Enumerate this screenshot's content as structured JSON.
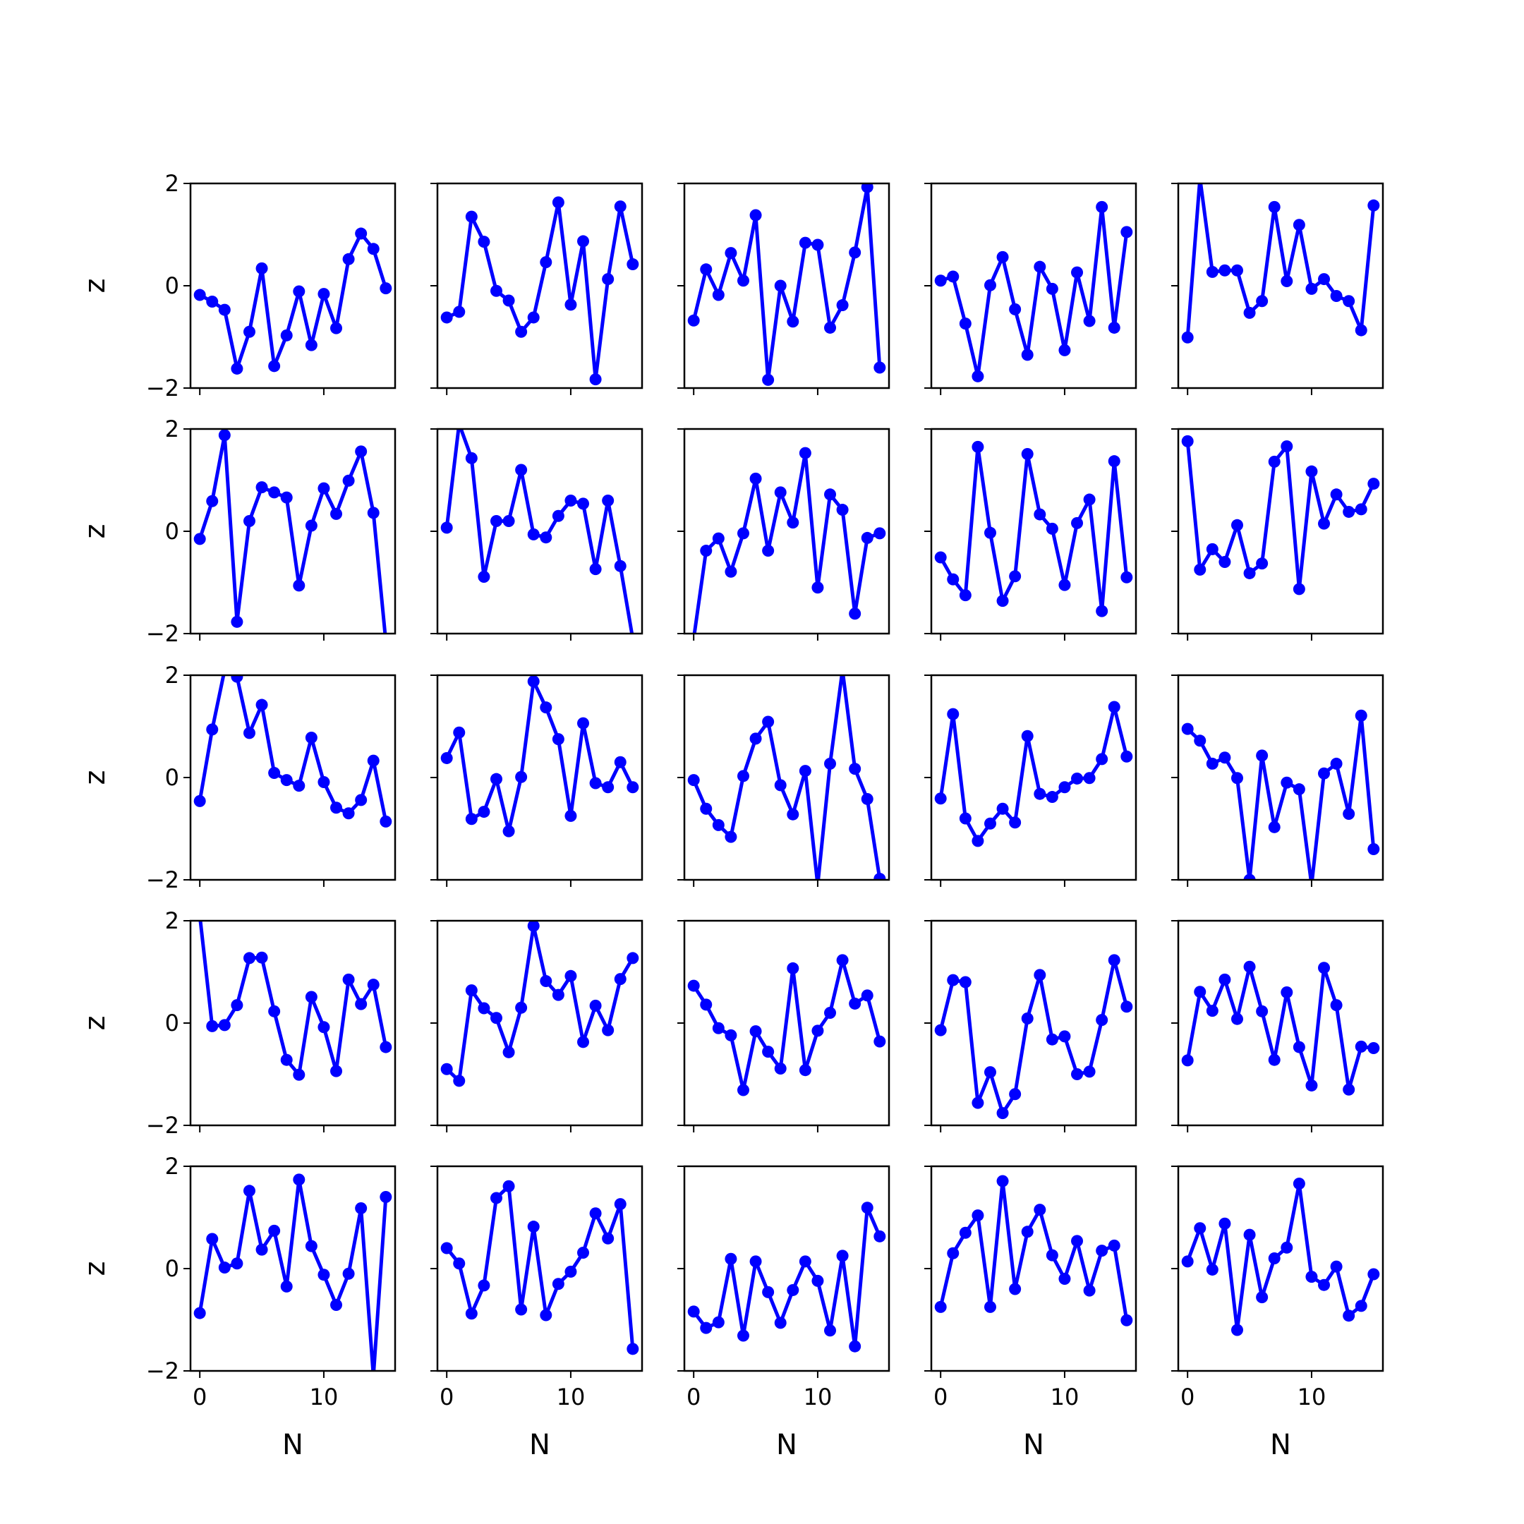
{
  "chart_data": {
    "type": "line",
    "layout": {
      "rows": 5,
      "cols": 5,
      "sharex": true,
      "sharey": true
    },
    "xlabel": "N",
    "ylabel": "z",
    "xlim": [
      -0.75,
      15.75
    ],
    "ylim": [
      -2,
      2
    ],
    "xticks": [
      0,
      10
    ],
    "yticks": [
      -2,
      0,
      2
    ],
    "xtick_labels": [
      "0",
      "10"
    ],
    "ytick_labels": [
      "−2",
      "0",
      "2"
    ],
    "x": [
      0,
      1,
      2,
      3,
      4,
      5,
      6,
      7,
      8,
      9,
      10,
      11,
      12,
      13,
      14,
      15
    ],
    "color": "#0000ff",
    "marker": "circle",
    "panels": [
      {
        "values": [
          -0.18,
          -0.31,
          -0.47,
          -1.62,
          -0.9,
          0.34,
          -1.57,
          -0.97,
          -0.11,
          -1.16,
          -0.16,
          -0.83,
          0.52,
          1.02,
          0.72,
          -0.05
        ]
      },
      {
        "values": [
          -0.62,
          -0.51,
          1.35,
          0.86,
          -0.1,
          -0.29,
          -0.9,
          -0.62,
          0.46,
          1.63,
          -0.37,
          0.87,
          -1.83,
          0.13,
          1.55,
          0.42
        ]
      },
      {
        "values": [
          -0.68,
          0.32,
          -0.18,
          0.64,
          0.1,
          1.38,
          -1.84,
          0.0,
          -0.7,
          0.84,
          0.8,
          -0.82,
          -0.38,
          0.65,
          1.93,
          -1.6
        ]
      },
      {
        "values": [
          0.1,
          0.18,
          -0.74,
          -1.77,
          0.01,
          0.56,
          -0.46,
          -1.35,
          0.37,
          -0.06,
          -1.26,
          0.26,
          -0.69,
          1.54,
          -0.82,
          1.05
        ]
      },
      {
        "values": [
          -1.01,
          2.1,
          0.27,
          0.3,
          0.3,
          -0.53,
          -0.3,
          1.54,
          0.09,
          1.19,
          -0.06,
          0.13,
          -0.2,
          -0.3,
          -0.87,
          1.57
        ]
      },
      {
        "values": [
          -0.15,
          0.59,
          1.88,
          -1.77,
          0.2,
          0.86,
          0.76,
          0.66,
          -1.06,
          0.11,
          0.84,
          0.34,
          0.99,
          1.56,
          0.36,
          -2.15
        ]
      },
      {
        "values": [
          0.07,
          2.1,
          1.43,
          -0.89,
          0.2,
          0.2,
          1.2,
          -0.06,
          -0.12,
          0.3,
          0.6,
          0.54,
          -0.74,
          0.6,
          -0.68,
          -2.1
        ]
      },
      {
        "values": [
          -2.1,
          -0.38,
          -0.14,
          -0.79,
          -0.04,
          1.03,
          -0.38,
          0.76,
          0.17,
          1.53,
          -1.1,
          0.72,
          0.42,
          -1.61,
          -0.13,
          -0.04
        ]
      },
      {
        "values": [
          -0.51,
          -0.94,
          -1.25,
          1.65,
          -0.03,
          -1.36,
          -0.88,
          1.51,
          0.33,
          0.05,
          -1.05,
          0.16,
          0.62,
          -1.56,
          1.37,
          -0.9
        ]
      },
      {
        "values": [
          1.76,
          -0.75,
          -0.35,
          -0.6,
          0.12,
          -0.82,
          -0.63,
          1.36,
          1.66,
          -1.13,
          1.17,
          0.15,
          0.72,
          0.38,
          0.43,
          0.93
        ]
      },
      {
        "values": [
          -0.46,
          0.94,
          2.1,
          1.97,
          0.87,
          1.42,
          0.09,
          -0.05,
          -0.16,
          0.78,
          -0.09,
          -0.59,
          -0.7,
          -0.44,
          0.33,
          -0.86
        ]
      },
      {
        "values": [
          0.38,
          0.88,
          -0.81,
          -0.67,
          -0.03,
          -1.05,
          0.01,
          1.88,
          1.37,
          0.75,
          -0.75,
          1.06,
          -0.11,
          -0.19,
          0.3,
          -0.19
        ]
      },
      {
        "values": [
          -0.05,
          -0.61,
          -0.93,
          -1.16,
          0.03,
          0.76,
          1.09,
          -0.15,
          -0.72,
          0.13,
          -2.1,
          0.27,
          2.1,
          0.17,
          -0.42,
          -1.98
        ]
      },
      {
        "values": [
          -0.41,
          1.24,
          -0.8,
          -1.24,
          -0.9,
          -0.61,
          -0.88,
          0.81,
          -0.32,
          -0.38,
          -0.19,
          -0.02,
          -0.01,
          0.36,
          1.38,
          0.41
        ]
      },
      {
        "values": [
          0.95,
          0.72,
          0.27,
          0.39,
          -0.01,
          -2.0,
          0.43,
          -0.97,
          -0.1,
          -0.23,
          -2.1,
          0.08,
          0.27,
          -0.71,
          1.21,
          -1.4
        ]
      },
      {
        "values": [
          2.1,
          -0.06,
          -0.04,
          0.35,
          1.27,
          1.28,
          0.23,
          -0.72,
          -1.01,
          0.51,
          -0.08,
          -0.94,
          0.85,
          0.37,
          0.75,
          -0.47
        ]
      },
      {
        "values": [
          -0.9,
          -1.13,
          0.64,
          0.29,
          0.1,
          -0.57,
          0.3,
          1.9,
          0.82,
          0.55,
          0.92,
          -0.37,
          0.34,
          -0.14,
          0.86,
          1.27
        ]
      },
      {
        "values": [
          0.73,
          0.36,
          -0.1,
          -0.24,
          -1.31,
          -0.16,
          -0.56,
          -0.89,
          1.07,
          -0.92,
          -0.15,
          0.2,
          1.23,
          0.38,
          0.54,
          -0.36
        ]
      },
      {
        "values": [
          -0.14,
          0.84,
          0.8,
          -1.56,
          -0.96,
          -1.76,
          -1.39,
          0.09,
          0.94,
          -0.32,
          -0.26,
          -1.0,
          -0.95,
          0.06,
          1.23,
          0.32
        ]
      },
      {
        "values": [
          -0.73,
          0.61,
          0.24,
          0.85,
          0.08,
          1.1,
          0.23,
          -0.72,
          0.6,
          -0.47,
          -1.22,
          1.08,
          0.35,
          -1.3,
          -0.46,
          -0.49
        ]
      },
      {
        "values": [
          -0.87,
          0.58,
          0.02,
          0.1,
          1.52,
          0.37,
          0.74,
          -0.35,
          1.74,
          0.44,
          -0.12,
          -0.71,
          -0.1,
          1.18,
          -2.1,
          1.4
        ]
      },
      {
        "values": [
          0.4,
          0.1,
          -0.88,
          -0.33,
          1.38,
          1.61,
          -0.8,
          0.82,
          -0.91,
          -0.3,
          -0.06,
          0.31,
          1.08,
          0.59,
          1.26,
          -1.57
        ]
      },
      {
        "values": [
          -0.84,
          -1.16,
          -1.05,
          0.19,
          -1.31,
          0.14,
          -0.46,
          -1.06,
          -0.42,
          0.14,
          -0.24,
          -1.21,
          0.25,
          -1.52,
          1.19,
          0.63
        ]
      },
      {
        "values": [
          -0.75,
          0.3,
          0.7,
          1.04,
          -0.75,
          1.71,
          -0.4,
          0.72,
          1.15,
          0.26,
          -0.2,
          0.54,
          -0.43,
          0.35,
          0.45,
          -1.01
        ]
      },
      {
        "values": [
          0.14,
          0.79,
          -0.02,
          0.88,
          -1.2,
          0.66,
          -0.56,
          0.2,
          0.41,
          1.66,
          -0.16,
          -0.32,
          0.04,
          -0.92,
          -0.73,
          -0.11
        ]
      }
    ]
  }
}
